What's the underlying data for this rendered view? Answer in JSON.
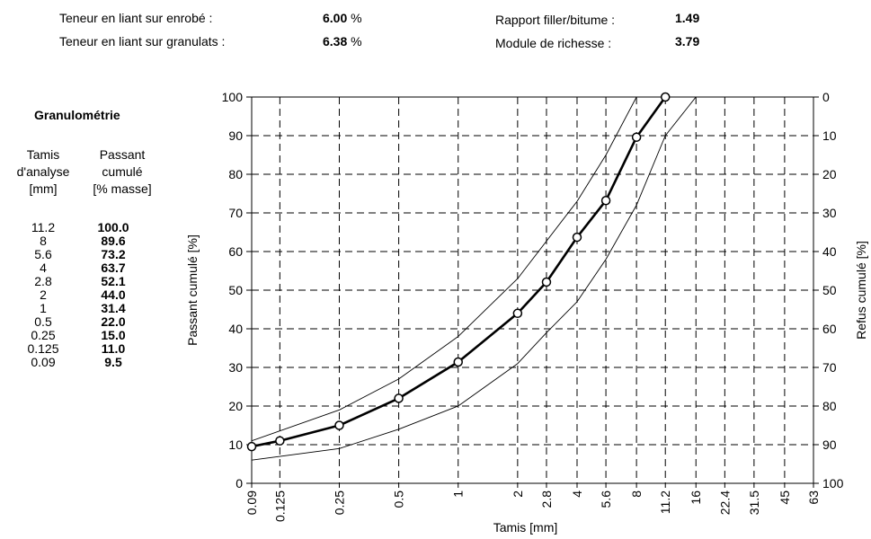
{
  "summary": {
    "liant_enrobe": {
      "label": "Teneur en liant sur enrobé :",
      "value": "6.00",
      "unit": "%"
    },
    "liant_granulats": {
      "label": "Teneur en liant sur granulats :",
      "value": "6.38",
      "unit": "%"
    },
    "filler_bitume": {
      "label": "Rapport filler/bitume :",
      "value": "1.49"
    },
    "module_richesse": {
      "label": "Module de richesse :",
      "value": "3.79"
    }
  },
  "table": {
    "title": "Granulométrie",
    "col1_header": [
      "Tamis",
      "d'analyse",
      "[mm]"
    ],
    "col2_header": [
      "Passant",
      "cumulé",
      "[% masse]"
    ],
    "rows": [
      {
        "sieve": "11.2",
        "passing": "100.0"
      },
      {
        "sieve": "8",
        "passing": "89.6"
      },
      {
        "sieve": "5.6",
        "passing": "73.2"
      },
      {
        "sieve": "4",
        "passing": "63.7"
      },
      {
        "sieve": "2.8",
        "passing": "52.1"
      },
      {
        "sieve": "2",
        "passing": "44.0"
      },
      {
        "sieve": "1",
        "passing": "31.4"
      },
      {
        "sieve": "0.5",
        "passing": "22.0"
      },
      {
        "sieve": "0.25",
        "passing": "15.0"
      },
      {
        "sieve": "0.125",
        "passing": "11.0"
      },
      {
        "sieve": "0.09",
        "passing": "9.5"
      }
    ]
  },
  "chart_data": {
    "type": "line",
    "xlabel": "Tamis [mm]",
    "ylabel": "Passant cumulé [%]",
    "y2label": "Refus cumulé [%]",
    "x_scale": "log",
    "x_ticks": [
      "0.09",
      "0.125",
      "0.25",
      "0.5",
      "1",
      "2",
      "2.8",
      "4",
      "5.6",
      "8",
      "11.2",
      "16",
      "22.4",
      "31.5",
      "45",
      "63"
    ],
    "ylim": [
      0,
      100
    ],
    "y_ticks": [
      0,
      10,
      20,
      30,
      40,
      50,
      60,
      70,
      80,
      90,
      100
    ],
    "y2_ticks": [
      100,
      90,
      80,
      70,
      60,
      50,
      40,
      30,
      20,
      10,
      0
    ],
    "grid": true,
    "series": [
      {
        "role": "curve",
        "style": "bold-with-markers",
        "x": [
          0.09,
          0.125,
          0.25,
          0.5,
          1,
          2,
          2.8,
          4,
          5.6,
          8,
          11.2
        ],
        "y": [
          9.5,
          11.0,
          15.0,
          22.0,
          31.4,
          44.0,
          52.1,
          63.7,
          73.2,
          89.6,
          100.0
        ]
      },
      {
        "role": "upper-limit",
        "style": "thin",
        "x": [
          0.09,
          0.25,
          0.5,
          1,
          2,
          4,
          5.6,
          8
        ],
        "y": [
          11,
          19,
          27,
          38,
          53,
          73,
          85,
          100
        ]
      },
      {
        "role": "lower-limit",
        "style": "thin",
        "x": [
          0.09,
          0.25,
          0.5,
          1,
          2,
          2.8,
          4,
          5.6,
          8,
          11.2,
          16
        ],
        "y": [
          6,
          9,
          14,
          20,
          31,
          39,
          47,
          58,
          72,
          90,
          100
        ]
      }
    ]
  }
}
